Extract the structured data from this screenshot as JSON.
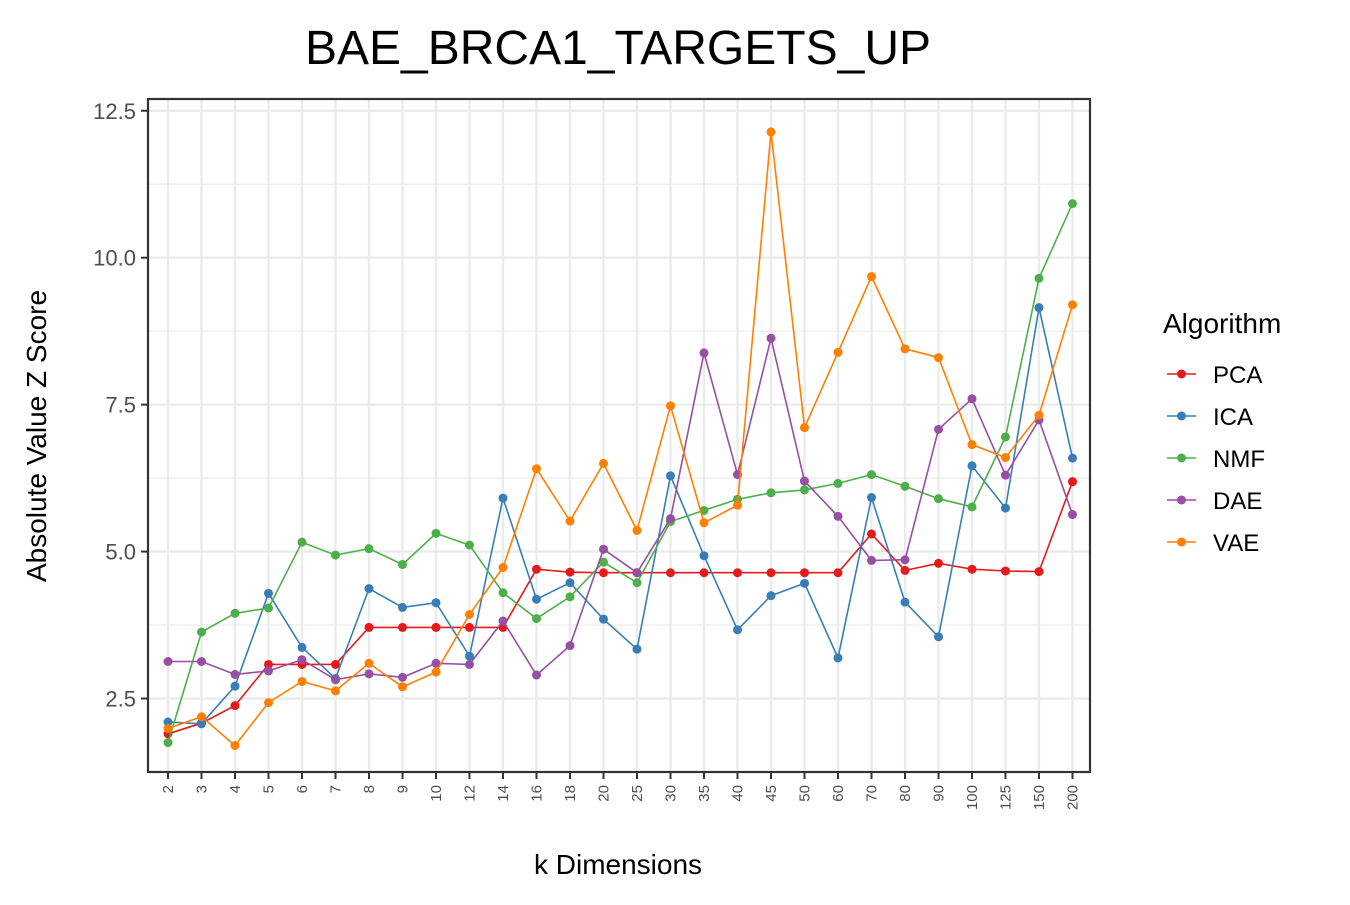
{
  "chart_data": {
    "type": "line",
    "title": "BAE_BRCA1_TARGETS_UP",
    "xlabel": "k Dimensions",
    "ylabel": "Absolute Value Z Score",
    "categories": [
      "2",
      "3",
      "4",
      "5",
      "6",
      "7",
      "8",
      "9",
      "10",
      "12",
      "14",
      "16",
      "18",
      "20",
      "25",
      "30",
      "35",
      "40",
      "45",
      "50",
      "60",
      "70",
      "80",
      "90",
      "100",
      "125",
      "150",
      "200"
    ],
    "ylim": [
      1.25,
      12.7
    ],
    "yticks": [
      2.5,
      5.0,
      7.5,
      10.0,
      12.5
    ],
    "ytick_labels": [
      "2.5",
      "5.0",
      "7.5",
      "10.0",
      "12.5"
    ],
    "grid": true,
    "legend": {
      "title": "Algorithm",
      "position": "right"
    },
    "series": [
      {
        "name": "PCA",
        "color": "#e41a1c",
        "values": [
          1.9,
          2.08,
          2.38,
          3.08,
          3.08,
          3.08,
          3.71,
          3.71,
          3.71,
          3.71,
          3.71,
          4.7,
          4.65,
          4.64,
          4.64,
          4.64,
          4.64,
          4.64,
          4.64,
          4.64,
          4.64,
          5.3,
          4.68,
          4.8,
          4.7,
          4.67,
          4.66,
          6.19
        ]
      },
      {
        "name": "ICA",
        "color": "#377eb8",
        "values": [
          2.1,
          2.07,
          2.71,
          4.29,
          3.37,
          2.84,
          4.37,
          4.05,
          4.13,
          3.22,
          5.91,
          4.19,
          4.47,
          3.85,
          3.34,
          6.29,
          4.93,
          3.67,
          4.25,
          4.46,
          3.19,
          5.92,
          4.14,
          3.55,
          6.46,
          5.74,
          9.15,
          6.59
        ]
      },
      {
        "name": "NMF",
        "color": "#4daf4a",
        "values": [
          1.75,
          3.63,
          3.95,
          4.04,
          5.16,
          4.94,
          5.05,
          4.78,
          5.31,
          5.11,
          4.3,
          3.86,
          4.23,
          4.82,
          4.47,
          5.51,
          5.7,
          5.89,
          6.0,
          6.05,
          6.16,
          6.31,
          6.11,
          5.9,
          5.76,
          6.95,
          9.65,
          10.92
        ]
      },
      {
        "name": "DAE",
        "color": "#984ea3",
        "values": [
          3.13,
          3.13,
          2.91,
          2.97,
          3.16,
          2.82,
          2.92,
          2.86,
          3.1,
          3.08,
          3.82,
          2.9,
          3.4,
          5.04,
          4.64,
          5.56,
          8.38,
          6.31,
          8.63,
          6.2,
          5.6,
          4.85,
          4.86,
          7.08,
          7.6,
          6.3,
          7.24,
          5.63
        ]
      },
      {
        "name": "VAE",
        "color": "#ff7f00",
        "values": [
          1.99,
          2.19,
          1.7,
          2.43,
          2.79,
          2.63,
          3.1,
          2.7,
          2.95,
          3.93,
          4.73,
          6.41,
          5.52,
          6.5,
          5.36,
          7.48,
          5.49,
          5.79,
          12.14,
          7.11,
          8.39,
          9.68,
          8.45,
          8.3,
          6.82,
          6.6,
          7.32,
          9.2
        ]
      }
    ]
  }
}
